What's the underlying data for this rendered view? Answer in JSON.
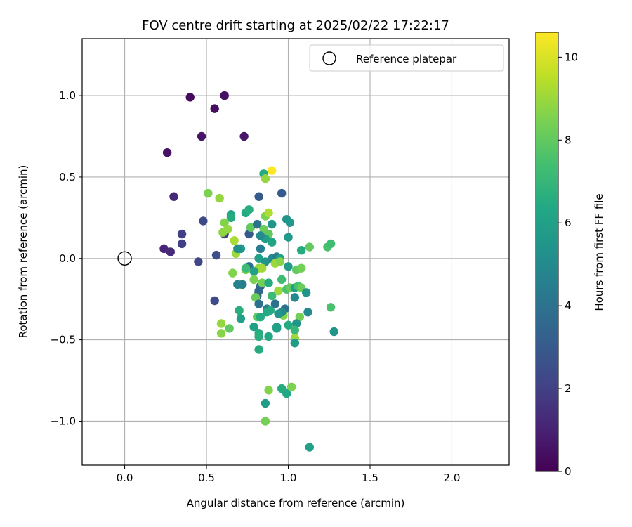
{
  "chart_data": {
    "type": "scatter",
    "title": "FOV centre drift starting at 2025/02/22 17:22:17",
    "xlabel": "Angular distance from reference (arcmin)",
    "ylabel": "Rotation from reference (arcmin)",
    "xlim": [
      -0.26,
      2.35
    ],
    "ylim": [
      -1.27,
      1.35
    ],
    "xticks": [
      0.0,
      0.5,
      1.0,
      1.5,
      2.0
    ],
    "xtick_labels": [
      "0.0",
      "0.5",
      "1.0",
      "1.5",
      "2.0"
    ],
    "yticks": [
      -1.0,
      -0.5,
      0.0,
      0.5,
      1.0
    ],
    "ytick_labels": [
      "−1.0",
      "−0.5",
      "0.0",
      "0.5",
      "1.0"
    ],
    "grid": true,
    "legend": {
      "position": "top-right",
      "entries": [
        "Reference platepar"
      ]
    },
    "reference_point": {
      "x": 0.0,
      "y": 0.0
    },
    "colorbar": {
      "label": "Hours from first FF file",
      "range": [
        0,
        10.6
      ],
      "ticks": [
        0,
        2,
        4,
        6,
        8,
        10
      ],
      "tick_labels": [
        "0",
        "2",
        "4",
        "6",
        "8",
        "10"
      ],
      "colormap": "viridis"
    },
    "points": [
      {
        "x": 0.4,
        "y": 0.99,
        "c": 0.3
      },
      {
        "x": 0.61,
        "y": 1.0,
        "c": 0.5
      },
      {
        "x": 0.55,
        "y": 0.92,
        "c": 0.4
      },
      {
        "x": 0.47,
        "y": 0.75,
        "c": 0.6
      },
      {
        "x": 0.73,
        "y": 0.75,
        "c": 0.7
      },
      {
        "x": 0.26,
        "y": 0.65,
        "c": 0.5
      },
      {
        "x": 0.3,
        "y": 0.38,
        "c": 1.2
      },
      {
        "x": 0.24,
        "y": 0.06,
        "c": 1.1
      },
      {
        "x": 0.28,
        "y": 0.04,
        "c": 1.3
      },
      {
        "x": 0.35,
        "y": 0.15,
        "c": 2.0
      },
      {
        "x": 0.35,
        "y": 0.09,
        "c": 2.0
      },
      {
        "x": 0.48,
        "y": 0.23,
        "c": 2.3
      },
      {
        "x": 0.45,
        "y": -0.02,
        "c": 2.2
      },
      {
        "x": 0.61,
        "y": 0.15,
        "c": 2.0
      },
      {
        "x": 0.56,
        "y": 0.02,
        "c": 2.5
      },
      {
        "x": 0.55,
        "y": -0.26,
        "c": 2.4
      },
      {
        "x": 0.82,
        "y": 0.38,
        "c": 3.0
      },
      {
        "x": 0.96,
        "y": 0.4,
        "c": 3.0
      },
      {
        "x": 0.85,
        "y": 0.52,
        "c": 6.5
      },
      {
        "x": 0.9,
        "y": 0.54,
        "c": 10.6
      },
      {
        "x": 0.86,
        "y": 0.49,
        "c": 8.9
      },
      {
        "x": 0.51,
        "y": 0.4,
        "c": 8.5
      },
      {
        "x": 0.58,
        "y": 0.37,
        "c": 8.9
      },
      {
        "x": 0.65,
        "y": 0.27,
        "c": 6.2
      },
      {
        "x": 0.65,
        "y": 0.25,
        "c": 6.5
      },
      {
        "x": 0.74,
        "y": 0.28,
        "c": 6.4
      },
      {
        "x": 0.76,
        "y": 0.3,
        "c": 6.6
      },
      {
        "x": 0.61,
        "y": 0.22,
        "c": 8.6
      },
      {
        "x": 0.6,
        "y": 0.16,
        "c": 8.8
      },
      {
        "x": 0.63,
        "y": 0.18,
        "c": 8.9
      },
      {
        "x": 0.67,
        "y": 0.11,
        "c": 9.2
      },
      {
        "x": 0.68,
        "y": 0.03,
        "c": 9.0
      },
      {
        "x": 0.71,
        "y": 0.06,
        "c": 5.8
      },
      {
        "x": 0.69,
        "y": 0.06,
        "c": 5.2
      },
      {
        "x": 0.76,
        "y": 0.15,
        "c": 3.0
      },
      {
        "x": 0.77,
        "y": 0.19,
        "c": 8.0
      },
      {
        "x": 0.81,
        "y": 0.21,
        "c": 4.0
      },
      {
        "x": 0.86,
        "y": 0.26,
        "c": 8.5
      },
      {
        "x": 0.88,
        "y": 0.28,
        "c": 9.3
      },
      {
        "x": 0.85,
        "y": 0.18,
        "c": 8.2
      },
      {
        "x": 0.88,
        "y": 0.15,
        "c": 8.0
      },
      {
        "x": 0.9,
        "y": 0.21,
        "c": 5.5
      },
      {
        "x": 0.86,
        "y": 0.12,
        "c": 6.0
      },
      {
        "x": 0.9,
        "y": 0.1,
        "c": 6.2
      },
      {
        "x": 0.83,
        "y": 0.14,
        "c": 5.0
      },
      {
        "x": 0.99,
        "y": 0.24,
        "c": 5.5
      },
      {
        "x": 1.01,
        "y": 0.22,
        "c": 5.6
      },
      {
        "x": 1.0,
        "y": 0.13,
        "c": 5.7
      },
      {
        "x": 0.83,
        "y": 0.06,
        "c": 4.5
      },
      {
        "x": 0.82,
        "y": 0.0,
        "c": 6.0
      },
      {
        "x": 0.86,
        "y": -0.02,
        "c": 5.5
      },
      {
        "x": 0.9,
        "y": 0.0,
        "c": 5.0
      },
      {
        "x": 0.93,
        "y": 0.01,
        "c": 4.5
      },
      {
        "x": 0.95,
        "y": 0.0,
        "c": 6.0
      },
      {
        "x": 0.92,
        "y": -0.03,
        "c": 9.0
      },
      {
        "x": 0.95,
        "y": -0.02,
        "c": 8.7
      },
      {
        "x": 0.82,
        "y": -0.06,
        "c": 8.8
      },
      {
        "x": 0.84,
        "y": -0.06,
        "c": 9.1
      },
      {
        "x": 0.76,
        "y": -0.05,
        "c": 4.0
      },
      {
        "x": 0.79,
        "y": -0.08,
        "c": 6.0
      },
      {
        "x": 0.74,
        "y": -0.07,
        "c": 8.7
      },
      {
        "x": 0.79,
        "y": -0.13,
        "c": 8.5
      },
      {
        "x": 0.71,
        "y": -0.16,
        "c": 8.9
      },
      {
        "x": 0.72,
        "y": -0.16,
        "c": 4.5
      },
      {
        "x": 0.66,
        "y": -0.09,
        "c": 8.6
      },
      {
        "x": 0.83,
        "y": -0.17,
        "c": 3.5
      },
      {
        "x": 0.84,
        "y": -0.15,
        "c": 8.3
      },
      {
        "x": 0.88,
        "y": -0.15,
        "c": 6.5
      },
      {
        "x": 0.82,
        "y": -0.2,
        "c": 3.5
      },
      {
        "x": 0.81,
        "y": -0.23,
        "c": 3.5
      },
      {
        "x": 0.8,
        "y": -0.24,
        "c": 8.2
      },
      {
        "x": 0.82,
        "y": -0.28,
        "c": 4.0
      },
      {
        "x": 0.87,
        "y": -0.31,
        "c": 4.5
      },
      {
        "x": 0.9,
        "y": -0.23,
        "c": 7.2
      },
      {
        "x": 0.92,
        "y": -0.28,
        "c": 4.0
      },
      {
        "x": 0.94,
        "y": -0.2,
        "c": 9.0
      },
      {
        "x": 0.96,
        "y": -0.13,
        "c": 7.3
      },
      {
        "x": 0.99,
        "y": -0.19,
        "c": 7.5
      },
      {
        "x": 1.01,
        "y": -0.18,
        "c": 8.1
      },
      {
        "x": 1.04,
        "y": -0.18,
        "c": 6.0
      },
      {
        "x": 1.06,
        "y": -0.17,
        "c": 7.5
      },
      {
        "x": 1.08,
        "y": -0.18,
        "c": 8.2
      },
      {
        "x": 1.04,
        "y": -0.24,
        "c": 5.0
      },
      {
        "x": 1.11,
        "y": -0.21,
        "c": 5.5
      },
      {
        "x": 1.0,
        "y": -0.05,
        "c": 5.8
      },
      {
        "x": 1.05,
        "y": -0.07,
        "c": 8.0
      },
      {
        "x": 1.08,
        "y": -0.06,
        "c": 8.3
      },
      {
        "x": 1.08,
        "y": 0.05,
        "c": 6.5
      },
      {
        "x": 1.13,
        "y": 0.07,
        "c": 8.0
      },
      {
        "x": 1.24,
        "y": 0.07,
        "c": 7.5
      },
      {
        "x": 1.26,
        "y": 0.09,
        "c": 7.3
      },
      {
        "x": 1.26,
        "y": -0.3,
        "c": 7.5
      },
      {
        "x": 1.28,
        "y": -0.45,
        "c": 5.5
      },
      {
        "x": 1.12,
        "y": -0.33,
        "c": 5.0
      },
      {
        "x": 1.07,
        "y": -0.36,
        "c": 8.3
      },
      {
        "x": 1.05,
        "y": -0.4,
        "c": 5.5
      },
      {
        "x": 1.04,
        "y": -0.44,
        "c": 7.0
      },
      {
        "x": 1.04,
        "y": -0.49,
        "c": 9.0
      },
      {
        "x": 1.04,
        "y": -0.52,
        "c": 5.8
      },
      {
        "x": 0.98,
        "y": -0.31,
        "c": 4.0
      },
      {
        "x": 0.97,
        "y": -0.35,
        "c": 8.7
      },
      {
        "x": 1.0,
        "y": -0.41,
        "c": 6.5
      },
      {
        "x": 0.96,
        "y": -0.33,
        "c": 5.0
      },
      {
        "x": 0.94,
        "y": -0.34,
        "c": 5.5
      },
      {
        "x": 0.93,
        "y": -0.42,
        "c": 5.8
      },
      {
        "x": 0.93,
        "y": -0.43,
        "c": 6.0
      },
      {
        "x": 0.89,
        "y": -0.32,
        "c": 6.5
      },
      {
        "x": 0.87,
        "y": -0.33,
        "c": 6.4
      },
      {
        "x": 0.81,
        "y": -0.36,
        "c": 8.0
      },
      {
        "x": 0.83,
        "y": -0.36,
        "c": 6.5
      },
      {
        "x": 0.79,
        "y": -0.42,
        "c": 6.0
      },
      {
        "x": 0.82,
        "y": -0.46,
        "c": 6.5
      },
      {
        "x": 0.82,
        "y": -0.48,
        "c": 6.6
      },
      {
        "x": 0.88,
        "y": -0.48,
        "c": 6.3
      },
      {
        "x": 0.82,
        "y": -0.56,
        "c": 6.5
      },
      {
        "x": 0.7,
        "y": -0.32,
        "c": 6.6
      },
      {
        "x": 0.71,
        "y": -0.37,
        "c": 6.0
      },
      {
        "x": 0.59,
        "y": -0.4,
        "c": 8.9
      },
      {
        "x": 0.59,
        "y": -0.46,
        "c": 8.7
      },
      {
        "x": 0.64,
        "y": -0.43,
        "c": 8.0
      },
      {
        "x": 0.88,
        "y": -0.81,
        "c": 8.6
      },
      {
        "x": 0.96,
        "y": -0.8,
        "c": 6.5
      },
      {
        "x": 0.99,
        "y": -0.83,
        "c": 6.3
      },
      {
        "x": 1.02,
        "y": -0.79,
        "c": 8.5
      },
      {
        "x": 0.86,
        "y": -0.89,
        "c": 5.8
      },
      {
        "x": 0.86,
        "y": -1.0,
        "c": 8.4
      },
      {
        "x": 1.13,
        "y": -1.16,
        "c": 6.0
      },
      {
        "x": 0.69,
        "y": -0.16,
        "c": 4.6
      },
      {
        "x": 0.74,
        "y": -0.06,
        "c": 7.2
      }
    ]
  }
}
